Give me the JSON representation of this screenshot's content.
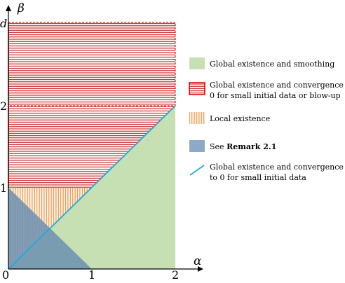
{
  "axes": {
    "x_label": "α",
    "y_label": "β",
    "x_ticks": [
      "0",
      "1",
      "2"
    ],
    "y_ticks": [
      "d",
      "2",
      "1"
    ]
  },
  "legend": [
    {
      "key": "smoothing",
      "lines": [
        "Global existence and smoothing"
      ],
      "color": "#c6e0b4"
    },
    {
      "key": "blowup",
      "lines": [
        "Global existence and convergence to",
        "0 for small initial data or blow-up"
      ],
      "color": "#c00000"
    },
    {
      "key": "local",
      "lines": [
        "Local existence"
      ],
      "color": "#f4a460"
    },
    {
      "key": "remark",
      "lines": [
        "See "
      ],
      "bold": "Remark 2.1",
      "color": "#8ea9c8"
    },
    {
      "key": "line",
      "lines": [
        "Global existence and convergence",
        "to 0 for small initial data"
      ],
      "color": "#1fa8e0"
    }
  ]
}
